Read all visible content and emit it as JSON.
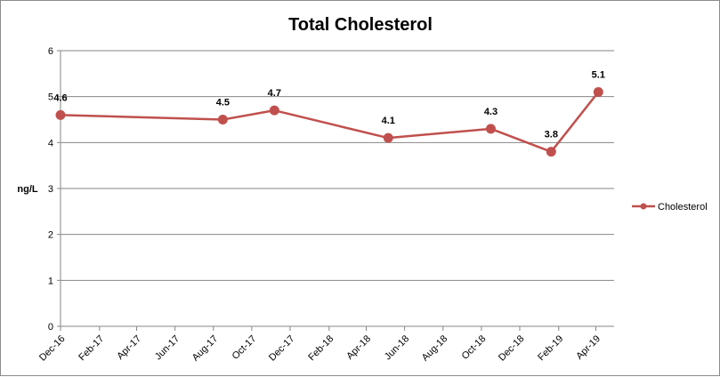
{
  "chart_data": {
    "type": "line",
    "title": "Total Cholesterol",
    "xlabel": "",
    "ylabel": "ng/L",
    "ylim": [
      0,
      6
    ],
    "yticks": [
      "0",
      "1",
      "2",
      "3",
      "4",
      "5",
      "6"
    ],
    "x_start": "2016-12-01",
    "x_end": "2019-04-30",
    "xticks": [
      {
        "label": "Dec-16",
        "date": "2016-12-01"
      },
      {
        "label": "Feb-17",
        "date": "2017-02-01"
      },
      {
        "label": "Apr-17",
        "date": "2017-04-01"
      },
      {
        "label": "Jun-17",
        "date": "2017-06-01"
      },
      {
        "label": "Aug-17",
        "date": "2017-08-01"
      },
      {
        "label": "Oct-17",
        "date": "2017-10-01"
      },
      {
        "label": "Dec-17",
        "date": "2017-12-01"
      },
      {
        "label": "Feb-18",
        "date": "2018-02-01"
      },
      {
        "label": "Apr-18",
        "date": "2018-04-01"
      },
      {
        "label": "Jun-18",
        "date": "2018-06-01"
      },
      {
        "label": "Aug-18",
        "date": "2018-08-01"
      },
      {
        "label": "Oct-18",
        "date": "2018-10-01"
      },
      {
        "label": "Dec-18",
        "date": "2018-12-01"
      },
      {
        "label": "Feb-19",
        "date": "2019-02-01"
      },
      {
        "label": "Apr-19",
        "date": "2019-04-01"
      }
    ],
    "series": [
      {
        "name": "Cholesterol",
        "color": "#c0504d",
        "points": [
          {
            "date": "2016-12-01",
            "value": 4.6,
            "label": "4.6"
          },
          {
            "date": "2017-08-16",
            "value": 4.5,
            "label": "4.5"
          },
          {
            "date": "2017-11-06",
            "value": 4.7,
            "label": "4.7"
          },
          {
            "date": "2018-05-06",
            "value": 4.1,
            "label": "4.1"
          },
          {
            "date": "2018-10-16",
            "value": 4.3,
            "label": "4.3"
          },
          {
            "date": "2019-01-20",
            "value": 3.8,
            "label": "3.8"
          },
          {
            "date": "2019-04-05",
            "value": 5.1,
            "label": "5.1"
          }
        ]
      }
    ],
    "grid": true,
    "legend": "right"
  }
}
